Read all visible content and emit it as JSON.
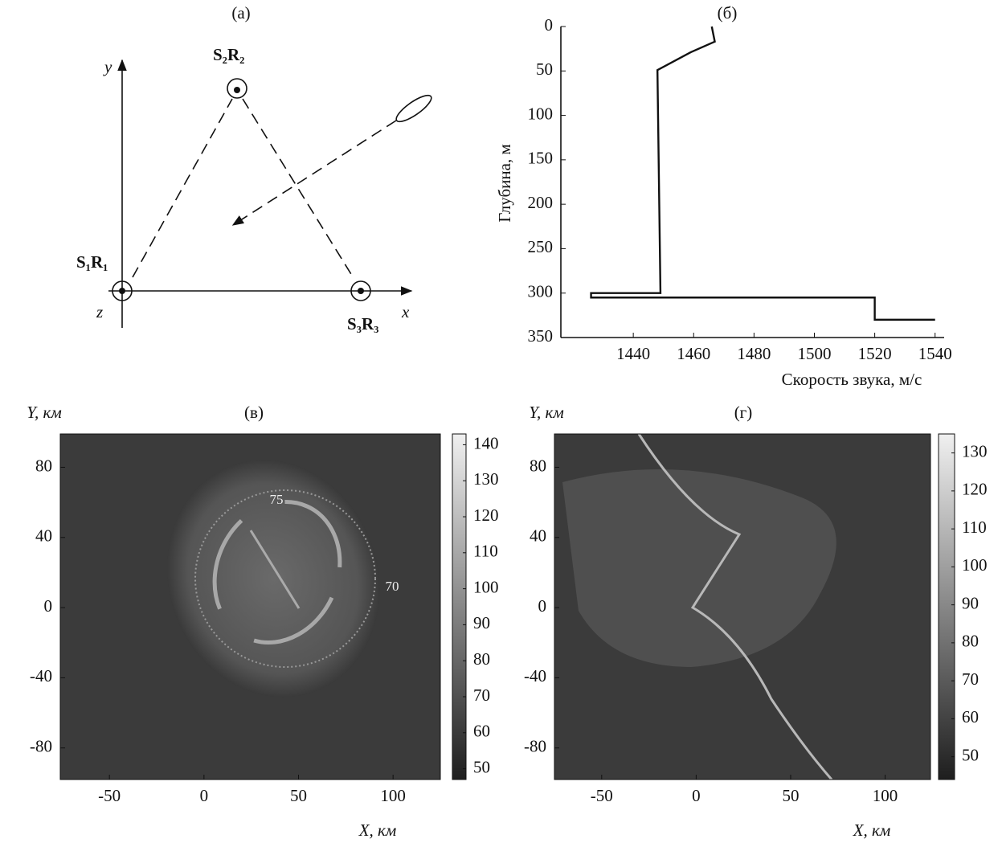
{
  "diagram": {
    "title": "(a)",
    "axis_y": "y",
    "axis_x": "x",
    "axis_z": "z",
    "nodes": [
      {
        "label": "S₁R₁"
      },
      {
        "label": "S₂R₂"
      },
      {
        "label": "S₃R₃"
      }
    ]
  },
  "chart_data": [
    {
      "type": "line",
      "title": "(б)",
      "xlabel": "Скорость звука, м/с",
      "ylabel": "Глубина, м",
      "x": [
        1466,
        1467,
        1459,
        1448,
        1449,
        1426,
        1426,
        1520,
        1520,
        1540
      ],
      "y": [
        0,
        17,
        29,
        49,
        300,
        300,
        305,
        305,
        330,
        330
      ],
      "color": "#111111",
      "xlim": [
        1416,
        1543
      ],
      "xticks": [
        1440,
        1460,
        1480,
        1500,
        1520,
        1540
      ],
      "ylim": [
        350,
        0
      ],
      "yticks": [
        0,
        50,
        100,
        150,
        200,
        250,
        300,
        350
      ]
    },
    {
      "type": "heatmap",
      "title": "(в)",
      "xlabel": "X, км",
      "ylabel": "Y, км",
      "colormap": "gray",
      "xlim": [
        -76,
        125
      ],
      "xticks": [
        -50,
        0,
        50,
        100
      ],
      "ylim": [
        -98,
        99
      ],
      "yticks": [
        -80,
        -40,
        0,
        40,
        80
      ],
      "clim": [
        47,
        143
      ],
      "cticks": [
        50,
        60,
        70,
        80,
        90,
        100,
        110,
        120,
        130,
        140
      ],
      "annotations": [
        "75",
        "70"
      ]
    },
    {
      "type": "heatmap",
      "title": "(г)",
      "xlabel": "X, км",
      "ylabel": "Y, км",
      "colormap": "gray",
      "xlim": [
        -75,
        124
      ],
      "xticks": [
        -50,
        0,
        50,
        100
      ],
      "ylim": [
        -98,
        99
      ],
      "yticks": [
        -80,
        -40,
        0,
        40,
        80
      ],
      "clim": [
        44,
        135
      ],
      "cticks": [
        50,
        60,
        70,
        80,
        90,
        100,
        110,
        120,
        130
      ]
    }
  ]
}
